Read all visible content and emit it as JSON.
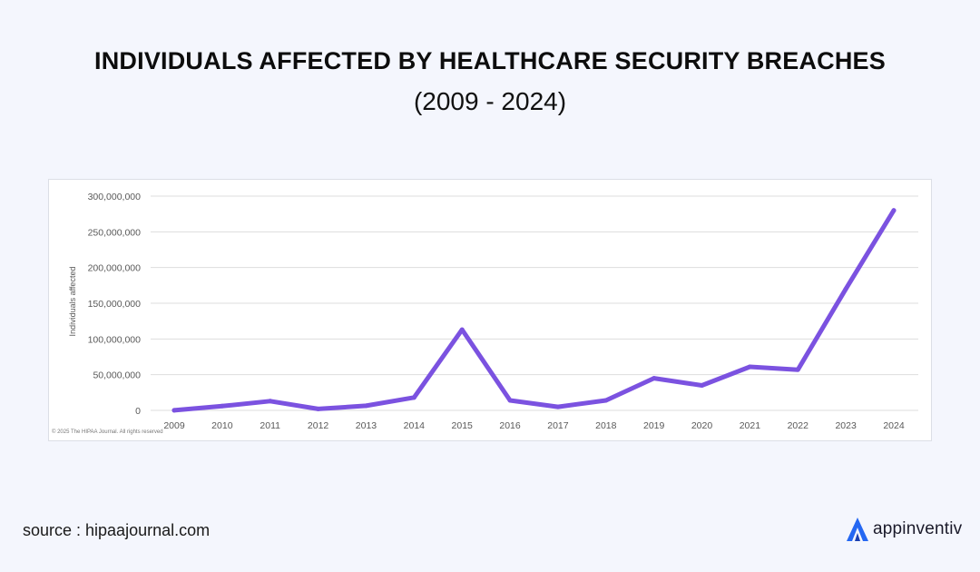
{
  "header": {
    "title": "INDIVIDUALS AFFECTED BY HEALTHCARE SECURITY BREACHES",
    "subtitle": "(2009 - 2024)"
  },
  "footer": {
    "source": "source : hipaajournal.com",
    "brand": "appinventiv",
    "copyright": "© 2025 The HIPAA Journal. All rights reserved"
  },
  "colors": {
    "line": "#7b52e0",
    "grid": "#dddddd",
    "brand_blue": "#2467f2"
  },
  "chart_data": {
    "type": "line",
    "title": "",
    "xlabel": "",
    "ylabel": "Individuals affected",
    "ylim": [
      0,
      300000000
    ],
    "yticks": [
      0,
      50000000,
      100000000,
      150000000,
      200000000,
      250000000,
      300000000
    ],
    "ytick_labels": [
      "0",
      "50,000,000",
      "100,000,000",
      "150,000,000",
      "200,000,000",
      "250,000,000",
      "300,000,000"
    ],
    "categories": [
      "2009",
      "2010",
      "2011",
      "2012",
      "2013",
      "2014",
      "2015",
      "2016",
      "2017",
      "2018",
      "2019",
      "2020",
      "2021",
      "2022",
      "2023",
      "2024"
    ],
    "series": [
      {
        "name": "Individuals affected",
        "values": [
          100000,
          6000000,
          13000000,
          2000000,
          6500000,
          18000000,
          113000000,
          14000000,
          5000000,
          14000000,
          45000000,
          35000000,
          61000000,
          57000000,
          170000000,
          280000000
        ]
      }
    ],
    "grid": true
  }
}
